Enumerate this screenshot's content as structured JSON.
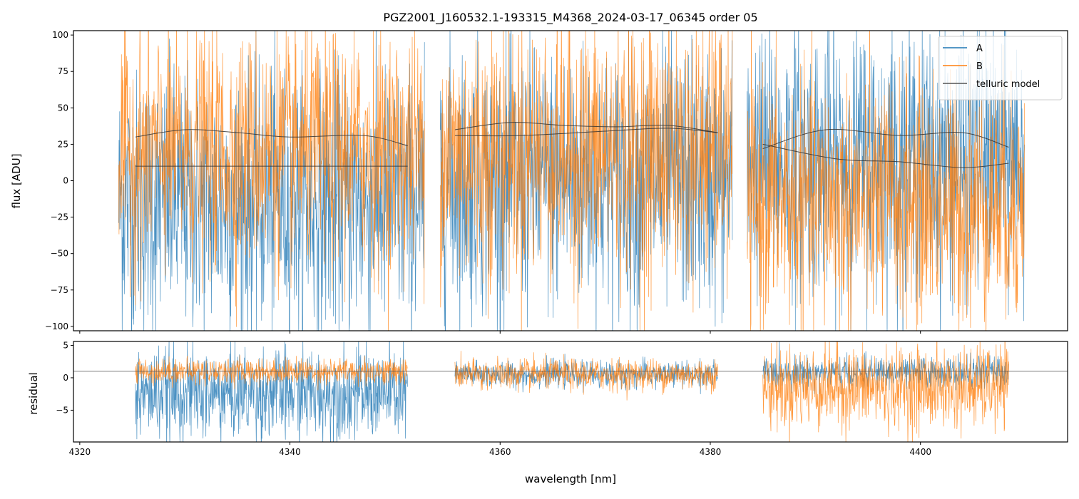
{
  "chart_data": [
    {
      "type": "line",
      "title": "PGZ2001_J160532.1-193315_M4368_2024-03-17_06345  order 05",
      "xlabel": "",
      "ylabel": "flux [ADU]",
      "xlim": [
        4319.4,
        4414.0
      ],
      "ylim": [
        -103,
        103
      ],
      "xticks": [
        4320,
        4340,
        4360,
        4380,
        4400
      ],
      "yticks": [
        -100,
        -75,
        -50,
        -25,
        0,
        25,
        50,
        75,
        100
      ],
      "ytick_labels": [
        "−100",
        "−75",
        "−50",
        "−25",
        "0",
        "25",
        "50",
        "75",
        "100"
      ],
      "legend": {
        "placement": "top-right",
        "entries": [
          "A",
          "B",
          "telluric model"
        ]
      },
      "series": [
        {
          "name": "A",
          "color": "#1f77b4",
          "segments": [
            {
              "x": [
                4323.7,
                4352.8
              ],
              "mean": -15,
              "sigma": 45
            },
            {
              "x": [
                4354.3,
                4382.1
              ],
              "mean": 0,
              "sigma": 45
            },
            {
              "x": [
                4383.5,
                4409.9
              ],
              "mean": 15,
              "sigma": 45
            }
          ]
        },
        {
          "name": "B",
          "color": "#ff7f0e",
          "segments": [
            {
              "x": [
                4323.7,
                4352.8
              ],
              "mean": 20,
              "sigma": 40
            },
            {
              "x": [
                4354.3,
                4382.1
              ],
              "mean": 20,
              "sigma": 45
            },
            {
              "x": [
                4383.5,
                4409.9
              ],
              "mean": -15,
              "sigma": 42
            }
          ]
        }
      ],
      "telluric_model": {
        "color": "#333333",
        "curves": [
          {
            "x": [
              4325.3,
              4330,
              4335,
              4340,
              4347,
              4351.2
            ],
            "y": [
              30,
              35,
              33,
              30,
              31,
              24
            ]
          },
          {
            "x": [
              4325.3,
              4351.2
            ],
            "y": [
              10,
              10
            ]
          },
          {
            "x": [
              4355.7,
              4361,
              4366,
              4371,
              4376,
              4380.7
            ],
            "y": [
              35,
              40,
              38,
              37,
              38,
              33
            ]
          },
          {
            "x": [
              4355.7,
              4362,
              4370,
              4376,
              4380.7
            ],
            "y": [
              31,
              31,
              34,
              36,
              33
            ]
          },
          {
            "x": [
              4385,
              4391,
              4398,
              4404,
              4408.4
            ],
            "y": [
              22,
              35,
              31,
              33,
              23
            ]
          },
          {
            "x": [
              4385,
              4392,
              4398,
              4404,
              4408.4
            ],
            "y": [
              25,
              15,
              13,
              9,
              12
            ]
          }
        ]
      }
    },
    {
      "type": "line",
      "xlabel": "wavelength [nm]",
      "ylabel": "residual",
      "xlim": [
        4319.4,
        4414.0
      ],
      "ylim": [
        -9.9,
        5.6
      ],
      "xticks": [
        4320,
        4340,
        4360,
        4380,
        4400
      ],
      "xtick_labels": [
        "4320",
        "4340",
        "4360",
        "4380",
        "4400"
      ],
      "yticks": [
        -5,
        0,
        5
      ],
      "ytick_labels": [
        "−5",
        "0",
        "5"
      ],
      "reference_line": 1,
      "series": [
        {
          "name": "A",
          "color": "#1f77b4",
          "segments": [
            {
              "x": [
                4325.3,
                4351.2
              ],
              "mean": -2.5,
              "sigma": 3.5
            },
            {
              "x": [
                4355.7,
                4380.7
              ],
              "mean": 0.5,
              "sigma": 1.0
            },
            {
              "x": [
                4385,
                4408.4
              ],
              "mean": 0.8,
              "sigma": 1.2
            }
          ]
        },
        {
          "name": "B",
          "color": "#ff7f0e",
          "segments": [
            {
              "x": [
                4325.3,
                4351.2
              ],
              "mean": 1,
              "sigma": 1.0
            },
            {
              "x": [
                4355.7,
                4380.7
              ],
              "mean": 0.5,
              "sigma": 1.2
            },
            {
              "x": [
                4385,
                4408.4
              ],
              "mean": -1.5,
              "sigma": 3.2
            }
          ]
        }
      ]
    }
  ]
}
